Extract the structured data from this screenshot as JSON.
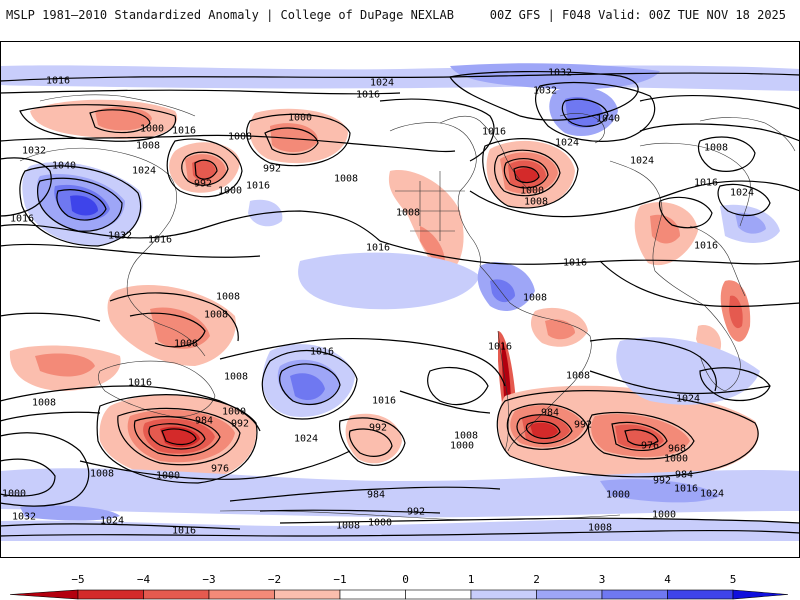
{
  "header": {
    "title_left": "MSLP 1981–2010 Standardized Anomaly | College of DuPage NEXLAB",
    "title_right": "00Z GFS | F048 Valid: 00Z TUE NOV 18 2025"
  },
  "isobars": [
    {
      "id": "l1016a",
      "label": "1016"
    },
    {
      "id": "l1024a",
      "label": "1024"
    },
    {
      "id": "l1016b",
      "label": "1016"
    },
    {
      "id": "l1032a",
      "label": "1032"
    },
    {
      "id": "l1032b",
      "label": "1032"
    },
    {
      "id": "l1040a",
      "label": "1040"
    },
    {
      "id": "l1000a",
      "label": "1000"
    },
    {
      "id": "l1016c",
      "label": "1016"
    },
    {
      "id": "l1008a",
      "label": "1008"
    },
    {
      "id": "l1000b",
      "label": "1000"
    },
    {
      "id": "l1016d",
      "label": "1016"
    },
    {
      "id": "l1024b",
      "label": "1024"
    },
    {
      "id": "l1008b",
      "label": "1008"
    },
    {
      "id": "l1032c",
      "label": "1032"
    },
    {
      "id": "l1040b",
      "label": "1040"
    },
    {
      "id": "l1024c",
      "label": "1024"
    },
    {
      "id": "l992a",
      "label": "992"
    },
    {
      "id": "l1000c",
      "label": "1000"
    },
    {
      "id": "l1016e",
      "label": "1016"
    },
    {
      "id": "l992b",
      "label": "992"
    },
    {
      "id": "l1008c",
      "label": "1008"
    },
    {
      "id": "l1016f",
      "label": "1016"
    },
    {
      "id": "l1032d",
      "label": "1032"
    },
    {
      "id": "l1016g",
      "label": "1016"
    },
    {
      "id": "l1008d",
      "label": "1008"
    },
    {
      "id": "l1000d",
      "label": "1000"
    },
    {
      "id": "l1008e",
      "label": "1008"
    },
    {
      "id": "l1024d",
      "label": "1024"
    },
    {
      "id": "l1008f",
      "label": "1008"
    },
    {
      "id": "l1016h",
      "label": "1016"
    },
    {
      "id": "l1024e",
      "label": "1024"
    },
    {
      "id": "l1016i",
      "label": "1016"
    },
    {
      "id": "l1016j",
      "label": "1016"
    },
    {
      "id": "l1008g",
      "label": "1008"
    },
    {
      "id": "l1008h",
      "label": "1008"
    },
    {
      "id": "l1008i",
      "label": "1008"
    },
    {
      "id": "l1016k",
      "label": "1016"
    },
    {
      "id": "l1016l",
      "label": "1016"
    },
    {
      "id": "l1008j",
      "label": "1008"
    },
    {
      "id": "l1016m",
      "label": "1016"
    },
    {
      "id": "l1008k",
      "label": "1008"
    },
    {
      "id": "l1008l",
      "label": "1008"
    },
    {
      "id": "l1016n",
      "label": "1016"
    },
    {
      "id": "l1000e",
      "label": "1000"
    },
    {
      "id": "l984a",
      "label": "984"
    },
    {
      "id": "l992c",
      "label": "992"
    },
    {
      "id": "l1024f",
      "label": "1024"
    },
    {
      "id": "l976a",
      "label": "976"
    },
    {
      "id": "l1008m",
      "label": "1008"
    },
    {
      "id": "l1000f",
      "label": "1000"
    },
    {
      "id": "l1016o",
      "label": "1016"
    },
    {
      "id": "l992d",
      "label": "992"
    },
    {
      "id": "l1008n",
      "label": "1008"
    },
    {
      "id": "l1000g",
      "label": "1000"
    },
    {
      "id": "l984b",
      "label": "984"
    },
    {
      "id": "l992e",
      "label": "992"
    },
    {
      "id": "l976b",
      "label": "976"
    },
    {
      "id": "l968a",
      "label": "968"
    },
    {
      "id": "l1000h",
      "label": "1000"
    },
    {
      "id": "l1008o",
      "label": "1008"
    },
    {
      "id": "l1024g",
      "label": "1024"
    },
    {
      "id": "l984c",
      "label": "984"
    },
    {
      "id": "l992f",
      "label": "992"
    },
    {
      "id": "l1016p",
      "label": "1016"
    },
    {
      "id": "l1024h",
      "label": "1024"
    },
    {
      "id": "l1000i",
      "label": "1000"
    },
    {
      "id": "l1032e",
      "label": "1032"
    },
    {
      "id": "l1024i",
      "label": "1024"
    },
    {
      "id": "l1016q",
      "label": "1016"
    },
    {
      "id": "l984d",
      "label": "984"
    },
    {
      "id": "l992g",
      "label": "992"
    },
    {
      "id": "l1008p",
      "label": "1008"
    },
    {
      "id": "l1000j",
      "label": "1000"
    },
    {
      "id": "l1000k",
      "label": "1000"
    },
    {
      "id": "l1008q",
      "label": "1008"
    },
    {
      "id": "l1000l",
      "label": "1000"
    }
  ],
  "colorbar": {
    "ticks": [
      "−5",
      "−4",
      "−3",
      "−2",
      "−1",
      "0",
      "1",
      "2",
      "3",
      "4",
      "5"
    ],
    "colors": [
      "#b3000f",
      "#d42a2a",
      "#e55a4f",
      "#f38a78",
      "#fbbeae",
      "#ffffff",
      "#ffffff",
      "#c8cdfb",
      "#9ea6f7",
      "#6f78f1",
      "#3e44ea",
      "#1010dd"
    ]
  }
}
